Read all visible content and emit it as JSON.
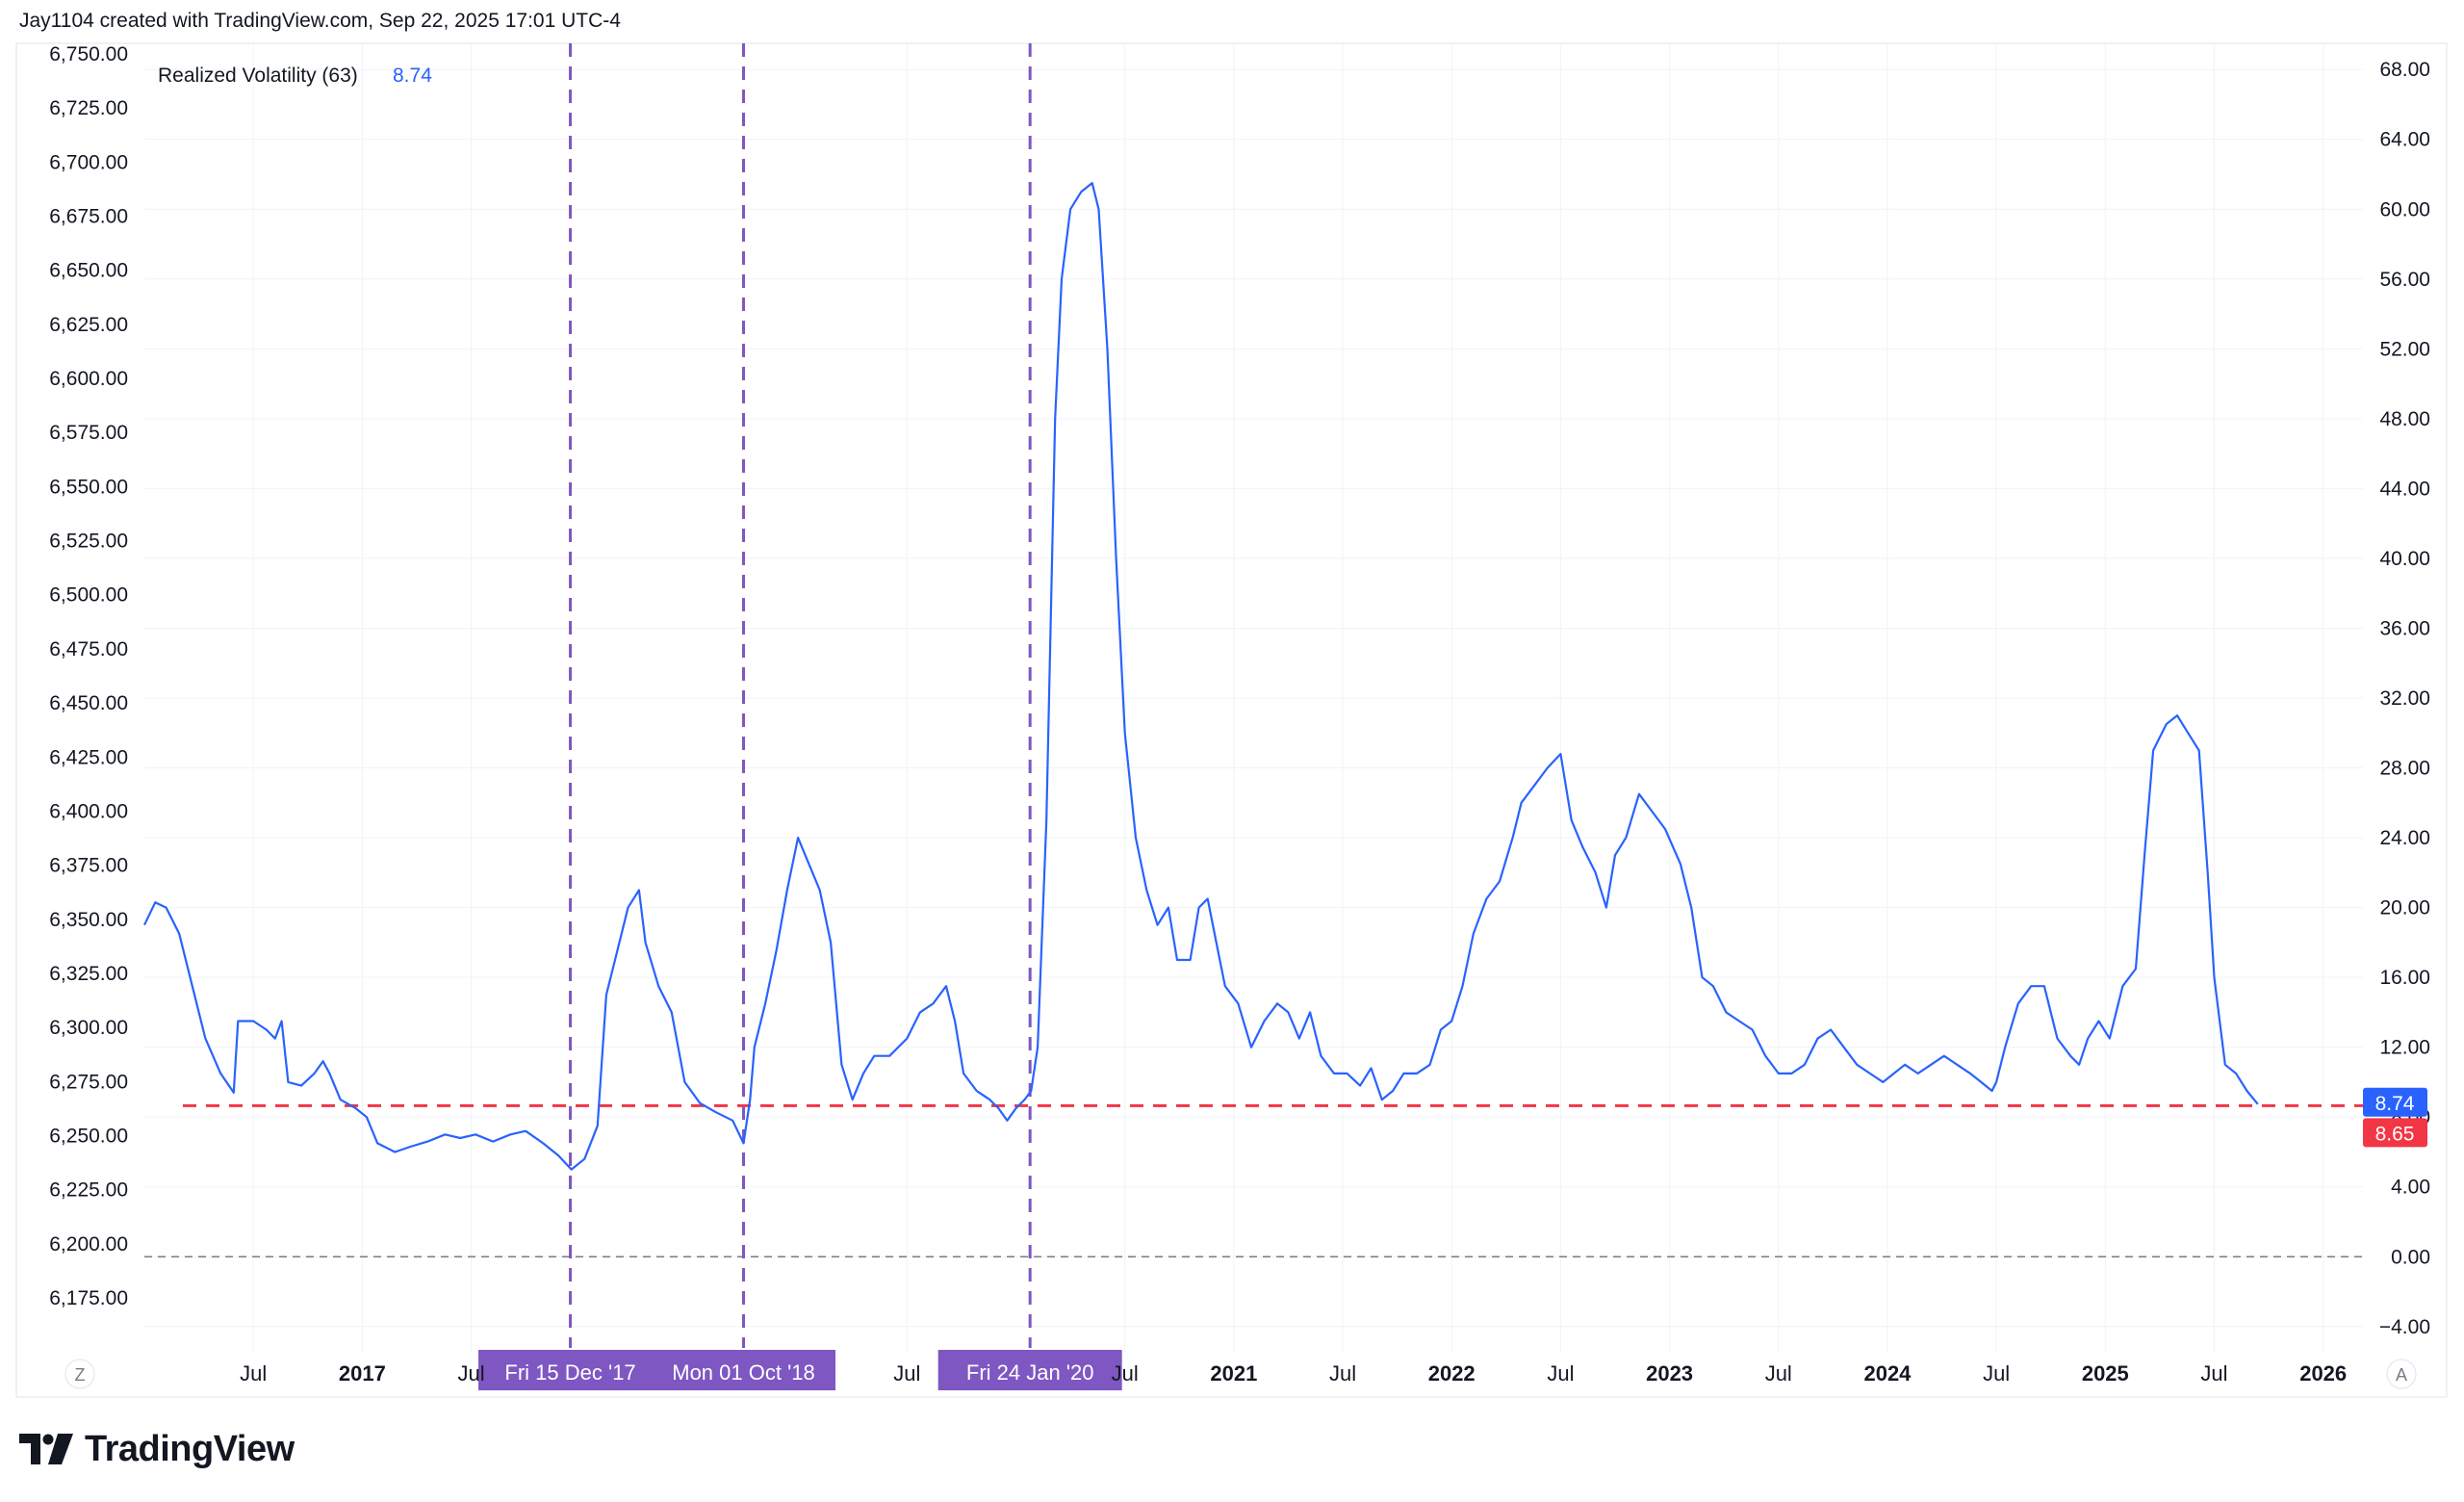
{
  "header": {
    "attribution": "Jay1104 created with TradingView.com, Sep 22, 2025 17:01 UTC-4"
  },
  "footer": {
    "brand": "TradingView"
  },
  "indicator": {
    "name": "Realized Volatility (63)",
    "value": "8.74"
  },
  "colors": {
    "series": "#2962ff",
    "ref_line": "#f23645",
    "markers": "#7e57c2",
    "grid": "#f0f3fa",
    "zero_line": "#787b86"
  },
  "controls": {
    "left": "Z",
    "right": "A"
  },
  "badges": {
    "current": "8.74",
    "reference": "8.65"
  },
  "chart_data": {
    "type": "line",
    "left_axis": {
      "ticks": [
        "6,750.00",
        "6,725.00",
        "6,700.00",
        "6,675.00",
        "6,650.00",
        "6,625.00",
        "6,600.00",
        "6,575.00",
        "6,550.00",
        "6,525.00",
        "6,500.00",
        "6,475.00",
        "6,450.00",
        "6,425.00",
        "6,400.00",
        "6,375.00",
        "6,350.00",
        "6,325.00",
        "6,300.00",
        "6,275.00",
        "6,250.00",
        "6,225.00",
        "6,200.00",
        "6,175.00"
      ],
      "values": [
        6750,
        6725,
        6700,
        6675,
        6650,
        6625,
        6600,
        6575,
        6550,
        6525,
        6500,
        6475,
        6450,
        6425,
        6400,
        6375,
        6350,
        6325,
        6300,
        6275,
        6250,
        6225,
        6200,
        6175
      ]
    },
    "right_axis": {
      "ticks": [
        "68.00",
        "64.00",
        "60.00",
        "56.00",
        "52.00",
        "48.00",
        "44.00",
        "40.00",
        "36.00",
        "32.00",
        "28.00",
        "24.00",
        "20.00",
        "16.00",
        "12.00",
        "8.00",
        "4.00",
        "0.00",
        "−4.00"
      ],
      "values": [
        68,
        64,
        60,
        56,
        52,
        48,
        44,
        40,
        36,
        32,
        28,
        24,
        20,
        16,
        12,
        8,
        4,
        0,
        -4
      ],
      "range": [
        -5.5,
        69.5
      ]
    },
    "x_range": [
      2016.0,
      2026.05
    ],
    "x_ticks": [
      {
        "label": "Jul",
        "x": 2016.5,
        "bold": false
      },
      {
        "label": "2017",
        "x": 2017.0,
        "bold": true
      },
      {
        "label": "Jul",
        "x": 2017.5,
        "bold": false
      },
      {
        "label": "Jul",
        "x": 2019.5,
        "bold": false
      },
      {
        "label": "Jul",
        "x": 2020.5,
        "bold": false
      },
      {
        "label": "2021",
        "x": 2021.0,
        "bold": true
      },
      {
        "label": "Jul",
        "x": 2021.5,
        "bold": false
      },
      {
        "label": "2022",
        "x": 2022.0,
        "bold": true
      },
      {
        "label": "Jul",
        "x": 2022.5,
        "bold": false
      },
      {
        "label": "2023",
        "x": 2023.0,
        "bold": true
      },
      {
        "label": "Jul",
        "x": 2023.5,
        "bold": false
      },
      {
        "label": "2024",
        "x": 2024.0,
        "bold": true
      },
      {
        "label": "Jul",
        "x": 2024.5,
        "bold": false
      },
      {
        "label": "2025",
        "x": 2025.0,
        "bold": true
      },
      {
        "label": "Jul",
        "x": 2025.5,
        "bold": false
      },
      {
        "label": "2026",
        "x": 2026.0,
        "bold": true
      }
    ],
    "event_markers": [
      {
        "label": "Fri 15 Dec '17",
        "x": 2017.955
      },
      {
        "label": "Mon 01 Oct '18",
        "x": 2018.75
      },
      {
        "label": "Fri 24 Jan '20",
        "x": 2020.065
      }
    ],
    "reference_line": {
      "value": 8.65
    },
    "zero_line": {
      "value": 0
    },
    "series": [
      {
        "name": "Realized Volatility (63)",
        "points": [
          [
            2016.0,
            19.0
          ],
          [
            2016.05,
            20.3
          ],
          [
            2016.1,
            20.0
          ],
          [
            2016.16,
            18.5
          ],
          [
            2016.22,
            15.5
          ],
          [
            2016.28,
            12.5
          ],
          [
            2016.35,
            10.5
          ],
          [
            2016.41,
            9.4
          ],
          [
            2016.43,
            13.5
          ],
          [
            2016.5,
            13.5
          ],
          [
            2016.56,
            13.0
          ],
          [
            2016.6,
            12.5
          ],
          [
            2016.63,
            13.5
          ],
          [
            2016.66,
            10.0
          ],
          [
            2016.72,
            9.8
          ],
          [
            2016.78,
            10.5
          ],
          [
            2016.82,
            11.2
          ],
          [
            2016.85,
            10.5
          ],
          [
            2016.9,
            9.0
          ],
          [
            2016.97,
            8.5
          ],
          [
            2017.02,
            8.0
          ],
          [
            2017.07,
            6.5
          ],
          [
            2017.15,
            6.0
          ],
          [
            2017.22,
            6.3
          ],
          [
            2017.3,
            6.6
          ],
          [
            2017.38,
            7.0
          ],
          [
            2017.45,
            6.8
          ],
          [
            2017.52,
            7.0
          ],
          [
            2017.6,
            6.6
          ],
          [
            2017.68,
            7.0
          ],
          [
            2017.75,
            7.2
          ],
          [
            2017.83,
            6.5
          ],
          [
            2017.9,
            5.8
          ],
          [
            2017.96,
            5.0
          ],
          [
            2018.02,
            5.6
          ],
          [
            2018.08,
            7.5
          ],
          [
            2018.12,
            15.0
          ],
          [
            2018.16,
            17.0
          ],
          [
            2018.22,
            20.0
          ],
          [
            2018.27,
            21.0
          ],
          [
            2018.3,
            18.0
          ],
          [
            2018.36,
            15.5
          ],
          [
            2018.42,
            14.0
          ],
          [
            2018.48,
            10.0
          ],
          [
            2018.55,
            8.8
          ],
          [
            2018.62,
            8.3
          ],
          [
            2018.7,
            7.8
          ],
          [
            2018.75,
            6.5
          ],
          [
            2018.78,
            9.0
          ],
          [
            2018.8,
            12.0
          ],
          [
            2018.85,
            14.5
          ],
          [
            2018.9,
            17.5
          ],
          [
            2018.95,
            21.0
          ],
          [
            2019.0,
            24.0
          ],
          [
            2019.05,
            22.5
          ],
          [
            2019.1,
            21.0
          ],
          [
            2019.15,
            18.0
          ],
          [
            2019.2,
            11.0
          ],
          [
            2019.25,
            9.0
          ],
          [
            2019.3,
            10.5
          ],
          [
            2019.35,
            11.5
          ],
          [
            2019.42,
            11.5
          ],
          [
            2019.5,
            12.5
          ],
          [
            2019.56,
            14.0
          ],
          [
            2019.62,
            14.5
          ],
          [
            2019.68,
            15.5
          ],
          [
            2019.72,
            13.5
          ],
          [
            2019.76,
            10.5
          ],
          [
            2019.82,
            9.5
          ],
          [
            2019.88,
            9.0
          ],
          [
            2019.92,
            8.5
          ],
          [
            2019.96,
            7.8
          ],
          [
            2020.0,
            8.5
          ],
          [
            2020.04,
            9.0
          ],
          [
            2020.07,
            9.5
          ],
          [
            2020.1,
            12.0
          ],
          [
            2020.14,
            25.0
          ],
          [
            2020.18,
            48.0
          ],
          [
            2020.21,
            56.0
          ],
          [
            2020.25,
            60.0
          ],
          [
            2020.3,
            61.0
          ],
          [
            2020.35,
            61.5
          ],
          [
            2020.38,
            60.0
          ],
          [
            2020.42,
            52.0
          ],
          [
            2020.46,
            40.0
          ],
          [
            2020.5,
            30.0
          ],
          [
            2020.55,
            24.0
          ],
          [
            2020.6,
            21.0
          ],
          [
            2020.65,
            19.0
          ],
          [
            2020.7,
            20.0
          ],
          [
            2020.74,
            17.0
          ],
          [
            2020.8,
            17.0
          ],
          [
            2020.84,
            20.0
          ],
          [
            2020.88,
            20.5
          ],
          [
            2020.92,
            18.0
          ],
          [
            2020.96,
            15.5
          ],
          [
            2021.02,
            14.5
          ],
          [
            2021.08,
            12.0
          ],
          [
            2021.14,
            13.5
          ],
          [
            2021.2,
            14.5
          ],
          [
            2021.25,
            14.0
          ],
          [
            2021.3,
            12.5
          ],
          [
            2021.35,
            14.0
          ],
          [
            2021.4,
            11.5
          ],
          [
            2021.46,
            10.5
          ],
          [
            2021.52,
            10.5
          ],
          [
            2021.58,
            9.8
          ],
          [
            2021.63,
            10.8
          ],
          [
            2021.68,
            9.0
          ],
          [
            2021.73,
            9.5
          ],
          [
            2021.78,
            10.5
          ],
          [
            2021.84,
            10.5
          ],
          [
            2021.9,
            11.0
          ],
          [
            2021.95,
            13.0
          ],
          [
            2022.0,
            13.5
          ],
          [
            2022.05,
            15.5
          ],
          [
            2022.1,
            18.5
          ],
          [
            2022.16,
            20.5
          ],
          [
            2022.22,
            21.5
          ],
          [
            2022.28,
            24.0
          ],
          [
            2022.32,
            26.0
          ],
          [
            2022.38,
            27.0
          ],
          [
            2022.44,
            28.0
          ],
          [
            2022.5,
            28.8
          ],
          [
            2022.55,
            25.0
          ],
          [
            2022.6,
            23.5
          ],
          [
            2022.66,
            22.0
          ],
          [
            2022.71,
            20.0
          ],
          [
            2022.75,
            23.0
          ],
          [
            2022.8,
            24.0
          ],
          [
            2022.86,
            26.5
          ],
          [
            2022.92,
            25.5
          ],
          [
            2022.98,
            24.5
          ],
          [
            2023.05,
            22.5
          ],
          [
            2023.1,
            20.0
          ],
          [
            2023.15,
            16.0
          ],
          [
            2023.2,
            15.5
          ],
          [
            2023.26,
            14.0
          ],
          [
            2023.32,
            13.5
          ],
          [
            2023.38,
            13.0
          ],
          [
            2023.44,
            11.5
          ],
          [
            2023.5,
            10.5
          ],
          [
            2023.56,
            10.5
          ],
          [
            2023.62,
            11.0
          ],
          [
            2023.68,
            12.5
          ],
          [
            2023.74,
            13.0
          ],
          [
            2023.8,
            12.0
          ],
          [
            2023.86,
            11.0
          ],
          [
            2023.92,
            10.5
          ],
          [
            2023.98,
            10.0
          ],
          [
            2024.03,
            10.5
          ],
          [
            2024.08,
            11.0
          ],
          [
            2024.14,
            10.5
          ],
          [
            2024.2,
            11.0
          ],
          [
            2024.26,
            11.5
          ],
          [
            2024.32,
            11.0
          ],
          [
            2024.38,
            10.5
          ],
          [
            2024.43,
            10.0
          ],
          [
            2024.48,
            9.5
          ],
          [
            2024.5,
            10.0
          ],
          [
            2024.54,
            12.0
          ],
          [
            2024.6,
            14.5
          ],
          [
            2024.66,
            15.5
          ],
          [
            2024.72,
            15.5
          ],
          [
            2024.78,
            12.5
          ],
          [
            2024.84,
            11.5
          ],
          [
            2024.88,
            11.0
          ],
          [
            2024.92,
            12.5
          ],
          [
            2024.97,
            13.5
          ],
          [
            2025.02,
            12.5
          ],
          [
            2025.08,
            15.5
          ],
          [
            2025.14,
            16.5
          ],
          [
            2025.18,
            23.0
          ],
          [
            2025.22,
            29.0
          ],
          [
            2025.28,
            30.5
          ],
          [
            2025.33,
            31.0
          ],
          [
            2025.38,
            30.0
          ],
          [
            2025.43,
            29.0
          ],
          [
            2025.47,
            22.0
          ],
          [
            2025.5,
            16.0
          ],
          [
            2025.55,
            11.0
          ],
          [
            2025.6,
            10.5
          ],
          [
            2025.65,
            9.5
          ],
          [
            2025.7,
            8.74
          ]
        ]
      }
    ]
  }
}
